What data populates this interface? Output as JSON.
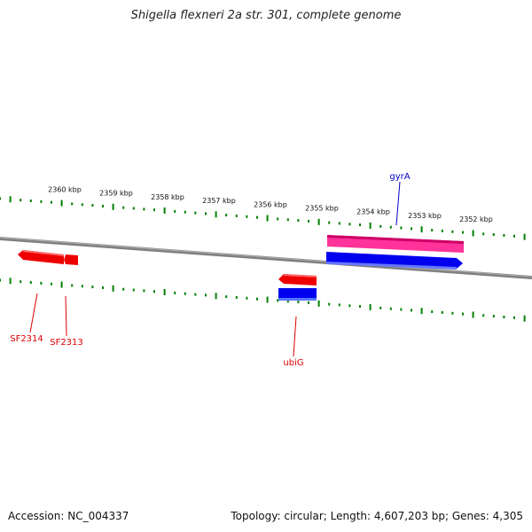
{
  "title": "Shigella flexneri 2a str. 301, complete genome",
  "footer": {
    "accession": "Accession: NC_004337",
    "summary": "Topology: circular; Length: 4,607,203 bp; Genes: 4,305"
  },
  "ruler": {
    "labels": [
      "2360 kbp",
      "2359 kbp",
      "2358 kbp",
      "2357 kbp",
      "2356 kbp",
      "2355 kbp",
      "2354 kbp",
      "2353 kbp",
      "2352 kbp"
    ],
    "tick_color": "#008000"
  },
  "genes": [
    {
      "name": "SF2314",
      "color": "#dd0000"
    },
    {
      "name": "SF2313",
      "color": "#dd0000"
    },
    {
      "name": "ubiG",
      "color": "#dd0000"
    },
    {
      "name": "gyrA",
      "color": "#0000cc"
    }
  ],
  "colors": {
    "backbone": "#808080",
    "forward_feature": "#0000ee",
    "reverse_feature": "#ee0000",
    "highlight_feature": "#ff3399"
  }
}
